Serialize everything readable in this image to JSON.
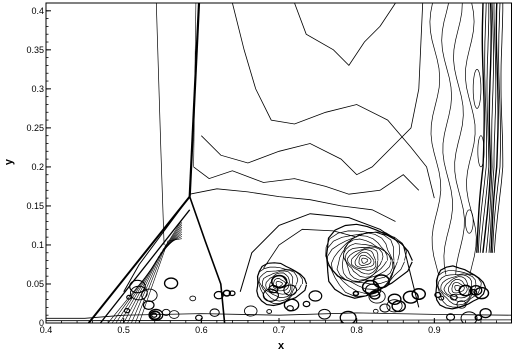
{
  "chart_data": {
    "type": "contour",
    "xlabel": "x",
    "ylabel": "y",
    "xlim": [
      0.4,
      1.0
    ],
    "ylim": [
      0.0,
      0.41
    ],
    "x_ticks": [
      0.4,
      0.5,
      0.6,
      0.7,
      0.8,
      0.9
    ],
    "x_tick_labels": [
      "0.4",
      "0.5",
      "0.6",
      "0.7",
      "0.8",
      "0.9"
    ],
    "y_ticks": [
      0.0,
      0.05,
      0.1,
      0.15,
      0.2,
      0.25,
      0.3,
      0.35,
      0.4
    ],
    "y_tick_labels": [
      "0",
      "0.05",
      "0.1",
      "0.15",
      "0.2",
      "0.25",
      "0.3",
      "0.35",
      "0.4"
    ],
    "grid": false,
    "line_color": "#000000",
    "background_color": "#ffffff",
    "features": {
      "triple_point": {
        "x": 0.585,
        "y": 0.162
      },
      "incident_shock": [
        [
          0.455,
          0.0
        ],
        [
          0.585,
          0.162
        ]
      ],
      "mach_stem": [
        [
          0.597,
          0.41
        ],
        [
          0.585,
          0.162
        ]
      ],
      "reflected_shock": [
        [
          0.585,
          0.162
        ],
        [
          0.605,
          0.105
        ],
        [
          0.625,
          0.05
        ],
        [
          0.63,
          0.0
        ]
      ],
      "right_shock_x": 0.975,
      "vortex_centers": [
        [
          0.7,
          0.05
        ],
        [
          0.81,
          0.08
        ],
        [
          0.93,
          0.045
        ]
      ]
    }
  }
}
